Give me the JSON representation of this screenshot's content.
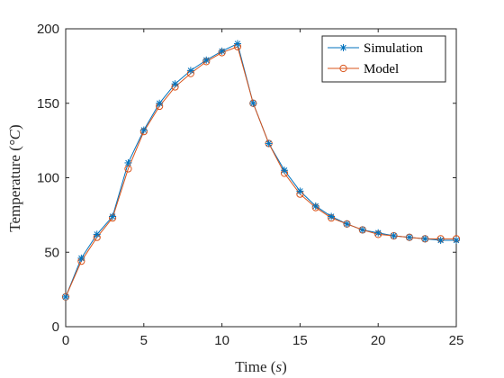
{
  "colors": {
    "simulation": "#0072BD",
    "model": "#D95319",
    "axis": "#262626",
    "background": "#ffffff"
  },
  "chart_data": {
    "type": "line",
    "xlabel": "Time (s)",
    "xlabel_parts": {
      "text": "Time (",
      "var": "s",
      "close": ")"
    },
    "ylabel": "Temperature (°C)",
    "ylabel_parts": {
      "text": "Temperature (",
      "var": "°C",
      "close": ")"
    },
    "xlim": [
      0,
      25
    ],
    "ylim": [
      0,
      200
    ],
    "xticks": [
      0,
      5,
      10,
      15,
      20,
      25
    ],
    "yticks": [
      0,
      50,
      100,
      150,
      200
    ],
    "grid": false,
    "legend_position": "top-right",
    "x": [
      0,
      1,
      2,
      3,
      4,
      5,
      6,
      7,
      8,
      9,
      10,
      11,
      12,
      13,
      14,
      15,
      16,
      17,
      18,
      19,
      20,
      21,
      22,
      23,
      24,
      25
    ],
    "series": [
      {
        "name": "Simulation",
        "marker": "asterisk",
        "values": [
          20,
          46,
          62,
          74,
          110,
          132,
          150,
          163,
          172,
          179,
          185,
          190,
          150,
          123,
          105,
          91,
          81,
          74,
          69,
          65,
          63,
          61,
          60,
          59,
          58,
          58
        ]
      },
      {
        "name": "Model",
        "marker": "circle",
        "values": [
          20,
          44,
          60,
          73,
          106,
          131,
          148,
          161,
          170,
          178,
          184,
          188,
          150,
          123,
          103,
          89,
          80,
          73,
          69,
          65,
          62,
          61,
          60,
          59,
          59,
          59
        ]
      }
    ]
  }
}
